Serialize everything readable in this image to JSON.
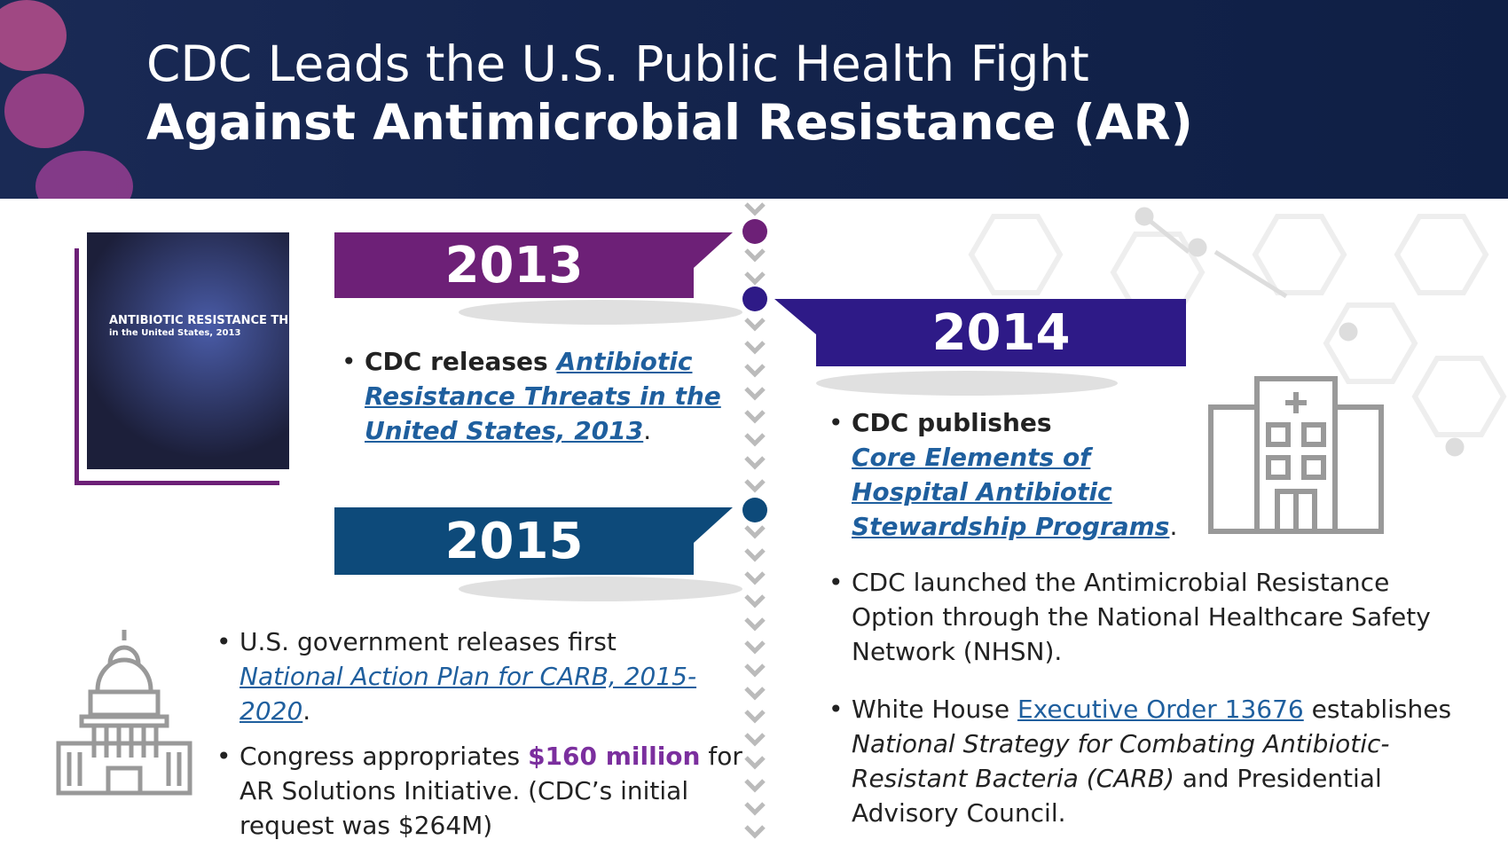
{
  "header": {
    "title_line1": "CDC Leads the U.S. Public Health Fight",
    "title_line2": "Against Antimicrobial Resistance (AR)"
  },
  "cover": {
    "title": "ANTIBIOTIC RESISTANCE THREATS",
    "subtitle": "in the United States, 2013"
  },
  "sections": [
    {
      "year": "2013",
      "bullets": [
        [
          "CDC releases ",
          "Antibiotic Resistance Threats in the United States, 2013",
          "."
        ]
      ]
    },
    {
      "year": "2014",
      "bullets": [
        [
          "CDC publishes ",
          "Core Elements of Hospital Antibiotic Stewardship Programs",
          "."
        ],
        [
          "CDC launched the Antimicrobial Resistance Option through the National Healthcare Safety Network (NHSN)."
        ],
        [
          "White House ",
          "Executive Order 13676",
          " establishes ",
          "National Strategy for Combating Antibiotic-Resistant Bacteria (CARB)",
          " and Presidential Advisory Council."
        ]
      ]
    },
    {
      "year": "2015",
      "bullets": [
        [
          "U.S. government releases first ",
          "National Action Plan for CARB, 2015-2020",
          "."
        ],
        [
          "Congress appropriates ",
          "$160 million",
          " for AR Solutions Initiative. (CDC’s initial request was $264M)"
        ]
      ]
    }
  ]
}
